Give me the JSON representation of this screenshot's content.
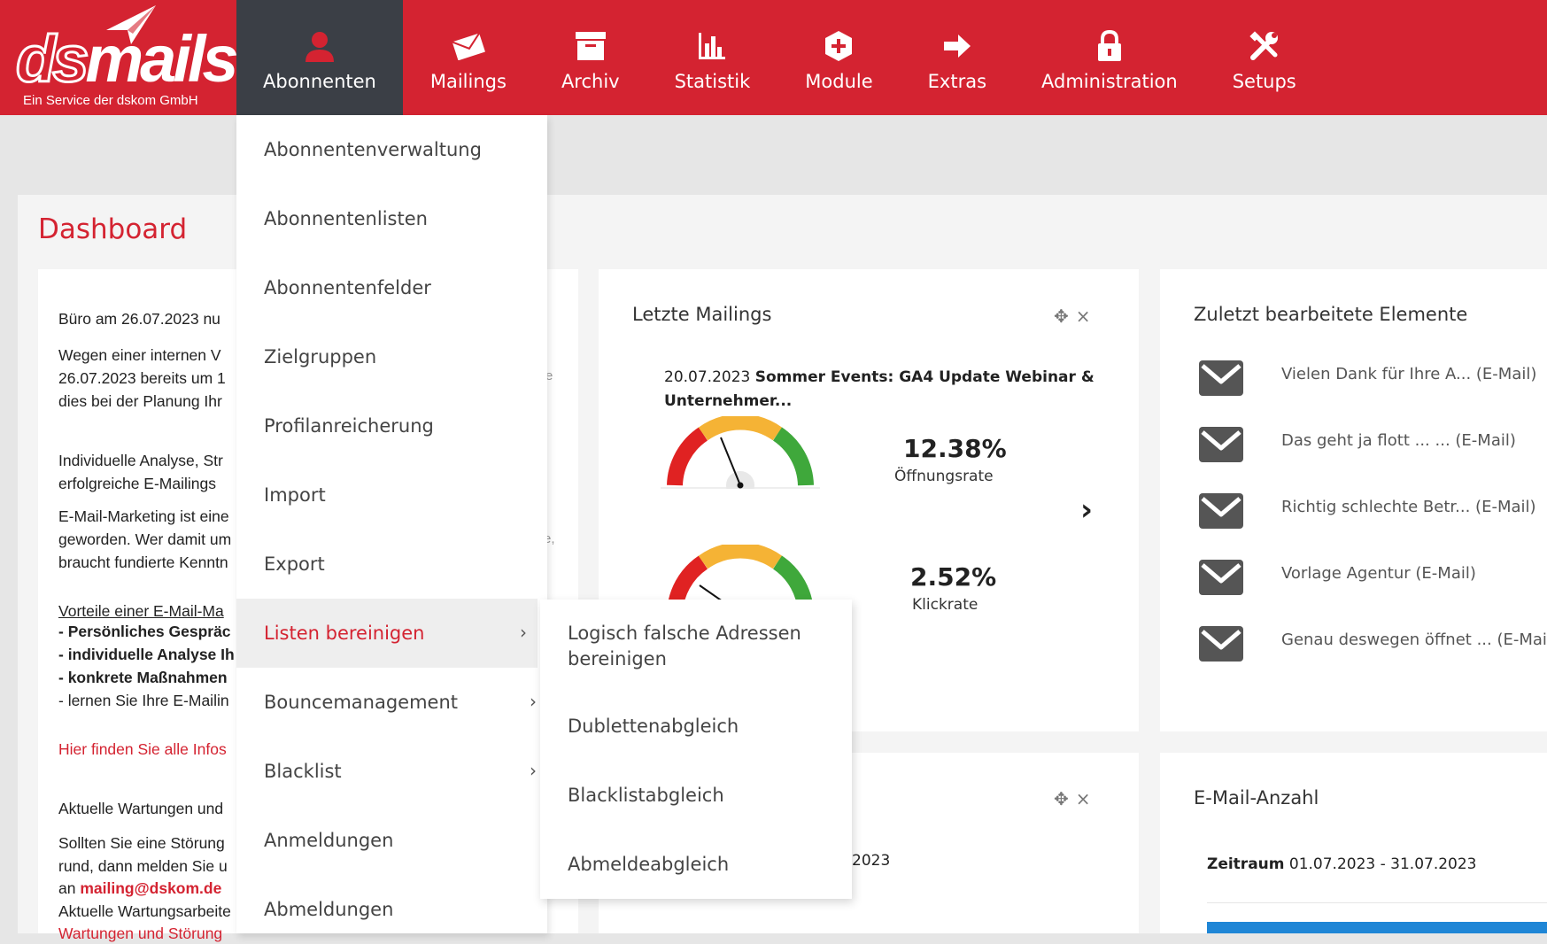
{
  "logo": {
    "brand_pre": "ds",
    "brand_post": "mails",
    "tagline": "Ein Service der dskom GmbH"
  },
  "nav": [
    {
      "label": "Abonnenten",
      "icon": "user-icon",
      "active": true
    },
    {
      "label": "Mailings",
      "icon": "envelope-icon"
    },
    {
      "label": "Archiv",
      "icon": "archive-icon"
    },
    {
      "label": "Statistik",
      "icon": "bar-chart-icon"
    },
    {
      "label": "Module",
      "icon": "plus-hexagon-icon"
    },
    {
      "label": "Extras",
      "icon": "arrow-right-icon"
    },
    {
      "label": "Administration",
      "icon": "lock-icon"
    },
    {
      "label": "Setups",
      "icon": "tools-icon"
    }
  ],
  "page_title": "Dashboard",
  "dropdown": [
    {
      "label": "Abonnentenverwaltung"
    },
    {
      "label": "Abonnentenlisten"
    },
    {
      "label": "Abonnentenfelder"
    },
    {
      "label": "Zielgruppen"
    },
    {
      "label": "Profilanreicherung"
    },
    {
      "label": "Import"
    },
    {
      "label": "Export"
    },
    {
      "label": "Listen bereinigen",
      "submenu": true,
      "active": true
    },
    {
      "label": "Bouncemanagement",
      "submenu": true
    },
    {
      "label": "Blacklist",
      "submenu": true
    },
    {
      "label": "Anmeldungen"
    },
    {
      "label": "Abmeldungen"
    }
  ],
  "submenu": [
    "Logisch falsche Adressen bereinigen",
    "Dublettenabgleich",
    "Blacklistabgleich",
    "Abmeldeabgleich"
  ],
  "news": {
    "heading1": "Büro am 26.07.2023 nu",
    "p1": [
      "Wegen einer internen V",
      "26.07.2023 bereits um 1",
      "dies bei der Planung Ihr"
    ],
    "heading2": [
      "Individuelle Analyse, Str",
      "erfolgreiche E-Mailings "
    ],
    "p2": [
      "E-Mail-Marketing ist eine",
      "geworden. Wer damit um",
      "braucht fundierte Kenntn"
    ],
    "advantages_title": "Vorteile einer E-Mail-Ma",
    "advantages": [
      "- Persönliches Gespräc",
      "- individuelle Analyse Ih",
      "- konkrete Maßnahmen",
      "- lernen Sie Ihre E-Mailin"
    ],
    "link": "Hier finden Sie alle Infos",
    "heading3": "Aktuelle Wartungen und",
    "p3": [
      "Sollten Sie eine Störung",
      "rund, dann melden Sie u",
      "an ",
      "Aktuelle Wartungsarbeite",
      "Wartungen und Störung"
    ],
    "email": "mailing@dskom.de",
    "stray1": "e",
    "stray2": "e,"
  },
  "last_mailings": {
    "title": "Letzte Mailings",
    "date": "20.07.2023",
    "subject_line1": "Sommer Events: GA4 Update Webinar &",
    "subject_line2": "Unternehmer...",
    "open_rate": "12.38%",
    "open_label": "Öffnungsrate",
    "click_rate": "2.52%",
    "click_label": "Klickrate",
    "next": "›"
  },
  "second_card": {
    "partial_date": "2023"
  },
  "recent": {
    "title": "Zuletzt bearbeitete Elemente",
    "items": [
      "Vielen Dank für Ihre A... (E-Mail)",
      "Das geht ja flott ... ... (E-Mail)",
      "Richtig schlechte Betr... (E-Mail)",
      "Vorlage Agentur (E-Mail)",
      "Genau deswegen öffnet ... (E-Mail)"
    ]
  },
  "email_count": {
    "title": "E-Mail-Anzahl",
    "period_label": "Zeitraum",
    "period": "01.07.2023 - 31.07.2023"
  },
  "tools": {
    "move": "✥",
    "close": "×"
  },
  "gauges": [
    {
      "name": "open-rate",
      "value": 0.1238
    },
    {
      "name": "click-rate",
      "value": 0.0252
    }
  ],
  "colors": {
    "brand": "#d42331",
    "nav_active": "#3b3f46"
  }
}
